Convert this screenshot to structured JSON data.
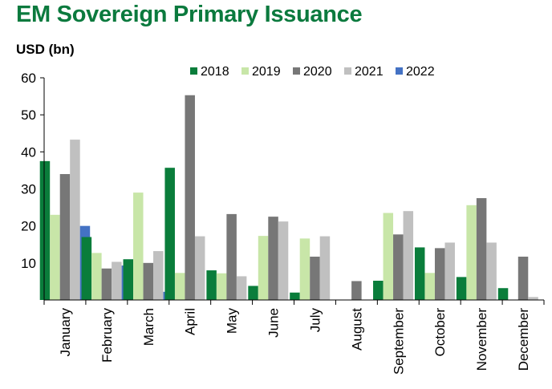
{
  "chart_data": {
    "type": "bar",
    "title": "EM Sovereign Primary Issuance",
    "ylabel": "USD (bn)",
    "xlabel": "",
    "ylim": [
      0,
      60
    ],
    "yticks": [
      10,
      20,
      30,
      40,
      50,
      60
    ],
    "grid": false,
    "legend_position": "top-center",
    "categories": [
      "January",
      "February",
      "March",
      "April",
      "May",
      "June",
      "July",
      "August",
      "September",
      "October",
      "November",
      "December"
    ],
    "series": [
      {
        "name": "2018",
        "color": "#0a7d3b",
        "values": [
          37.5,
          17,
          11,
          35.7,
          8,
          3.8,
          2,
          0,
          5.2,
          14.2,
          6.2,
          3.2
        ]
      },
      {
        "name": "2019",
        "color": "#c8e6a8",
        "values": [
          23,
          12.7,
          29,
          7.3,
          7.2,
          17.3,
          16.6,
          0,
          23.5,
          7.3,
          25.6,
          0
        ]
      },
      {
        "name": "2020",
        "color": "#777777",
        "values": [
          34,
          8.5,
          10,
          55.3,
          23.2,
          22.5,
          11.7,
          5.1,
          17.7,
          14,
          27.5,
          11.7
        ]
      },
      {
        "name": "2021",
        "color": "#c0c0c0",
        "values": [
          43.3,
          10.3,
          13.2,
          17.2,
          6.4,
          21.2,
          17.2,
          0,
          24,
          15.5,
          15.5,
          0.8
        ]
      },
      {
        "name": "2022",
        "color": "#4472c4",
        "values": [
          20,
          9.3,
          2.2,
          null,
          null,
          null,
          null,
          null,
          null,
          null,
          null,
          null
        ]
      }
    ]
  }
}
